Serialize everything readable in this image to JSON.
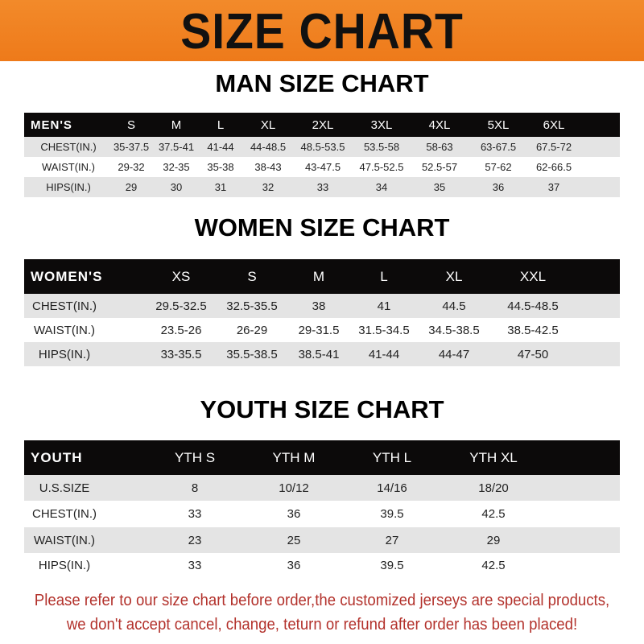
{
  "banner": {
    "title": "SIZE CHART",
    "color": "#f08224"
  },
  "men": {
    "title": "MAN SIZE CHART",
    "header": [
      "MEN'S",
      "S",
      "M",
      "L",
      "XL",
      "2XL",
      "3XL",
      "4XL",
      "5XL",
      "6XL"
    ],
    "rows": [
      [
        "CHEST(IN.)",
        "35-37.5",
        "37.5-41",
        "41-44",
        "44-48.5",
        "48.5-53.5",
        "53.5-58",
        "58-63",
        "63-67.5",
        "67.5-72"
      ],
      [
        "WAIST(IN.)",
        "29-32",
        "32-35",
        "35-38",
        "38-43",
        "43-47.5",
        "47.5-52.5",
        "52.5-57",
        "57-62",
        "62-66.5"
      ],
      [
        "HIPS(IN.)",
        "29",
        "30",
        "31",
        "32",
        "33",
        "34",
        "35",
        "36",
        "37"
      ]
    ]
  },
  "women": {
    "title": "WOMEN SIZE CHART",
    "header": [
      "WOMEN'S",
      "XS",
      "S",
      "M",
      "L",
      "XL",
      "XXL"
    ],
    "rows": [
      [
        "CHEST(IN.)",
        "29.5-32.5",
        "32.5-35.5",
        "38",
        "41",
        "44.5",
        "44.5-48.5"
      ],
      [
        "WAIST(IN.)",
        "23.5-26",
        "26-29",
        "29-31.5",
        "31.5-34.5",
        "34.5-38.5",
        "38.5-42.5"
      ],
      [
        "HIPS(IN.)",
        "33-35.5",
        "35.5-38.5",
        "38.5-41",
        "41-44",
        "44-47",
        "47-50"
      ]
    ]
  },
  "youth": {
    "title": "YOUTH SIZE CHART",
    "header": [
      "YOUTH",
      "YTH S",
      "YTH M",
      "YTH L",
      "YTH XL"
    ],
    "rows": [
      [
        "U.S.SIZE",
        "8",
        "10/12",
        "14/16",
        "18/20"
      ],
      [
        "CHEST(IN.)",
        "33",
        "36",
        "39.5",
        "42.5"
      ],
      [
        "WAIST(IN.)",
        "23",
        "25",
        "27",
        "29"
      ],
      [
        "HIPS(IN.)",
        "33",
        "36",
        "39.5",
        "42.5"
      ]
    ]
  },
  "notice": {
    "line1": "Please refer to our size chart before order,the customized jerseys are special products,",
    "line2": "we don't accept cancel, change, teturn or refund after order has been placed!",
    "color": "#b3322c"
  }
}
